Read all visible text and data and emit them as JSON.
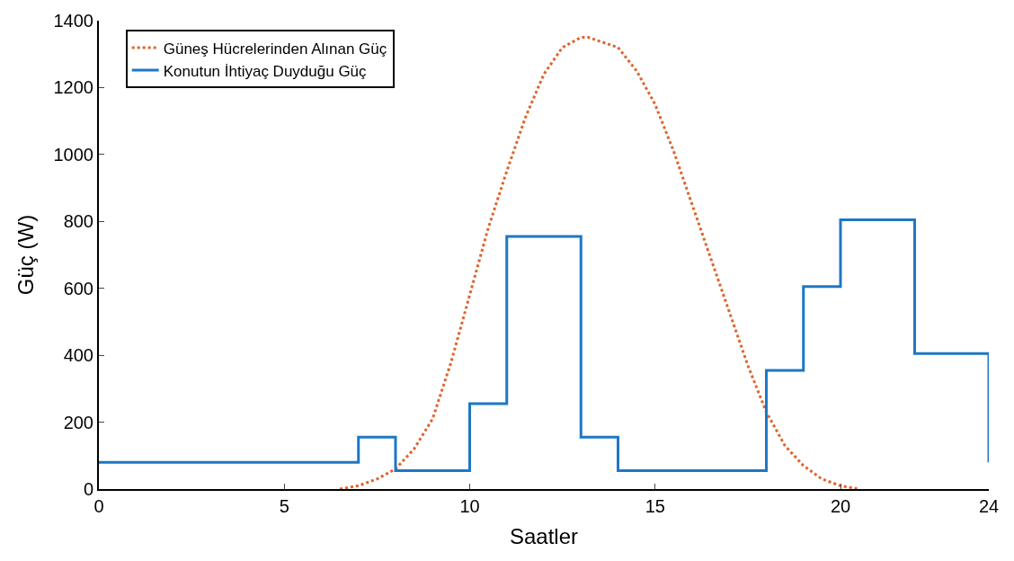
{
  "chart_data": {
    "type": "line",
    "xlabel": "Saatler",
    "ylabel": "Güç (W)",
    "xlim": [
      0,
      24
    ],
    "xticks": [
      0,
      5,
      10,
      15,
      20,
      24
    ],
    "ylim": [
      0,
      1400
    ],
    "yticks": [
      0,
      200,
      400,
      600,
      800,
      1000,
      1200,
      1400
    ],
    "legend": "top left",
    "series": [
      {
        "name": "Güneş Hücrelerinden Alınan Güç",
        "line_style": "dotted",
        "color": "#e0622a",
        "x": [
          6.5,
          7,
          7.5,
          8,
          8.5,
          9,
          9.5,
          10,
          10.5,
          11,
          11.5,
          12,
          12.5,
          13,
          13.2,
          14,
          14.5,
          15,
          15.5,
          16,
          16.5,
          17,
          17.5,
          18,
          18.5,
          19,
          19.5,
          20,
          20.5
        ],
        "values": [
          0,
          10,
          30,
          60,
          120,
          210,
          380,
          580,
          780,
          950,
          1110,
          1240,
          1320,
          1350,
          1350,
          1320,
          1250,
          1150,
          1010,
          850,
          690,
          530,
          370,
          230,
          130,
          70,
          30,
          10,
          0
        ]
      },
      {
        "name": "Konutun İhtiyaç Duyduğu Güç",
        "type": "step",
        "line_style": "solid",
        "color": "#1f77c4",
        "x": [
          0,
          7,
          8,
          10,
          11,
          13,
          14,
          18,
          19,
          20,
          22,
          24
        ],
        "values": [
          80,
          155,
          55,
          255,
          755,
          155,
          55,
          355,
          605,
          805,
          405,
          80
        ]
      }
    ]
  }
}
